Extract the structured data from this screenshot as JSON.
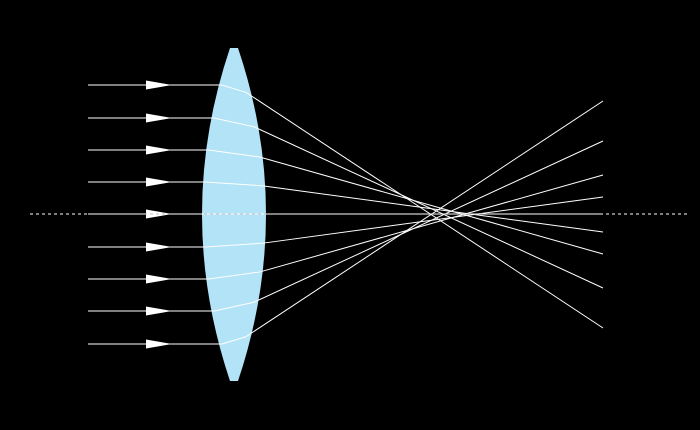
{
  "diagram": {
    "subject": "lens",
    "incident_ray_count": 9,
    "colors": {
      "background": "#000000",
      "lens": "#b3e3f7",
      "rays": "#ffffff",
      "optical_axis": "#cccccc"
    }
  }
}
